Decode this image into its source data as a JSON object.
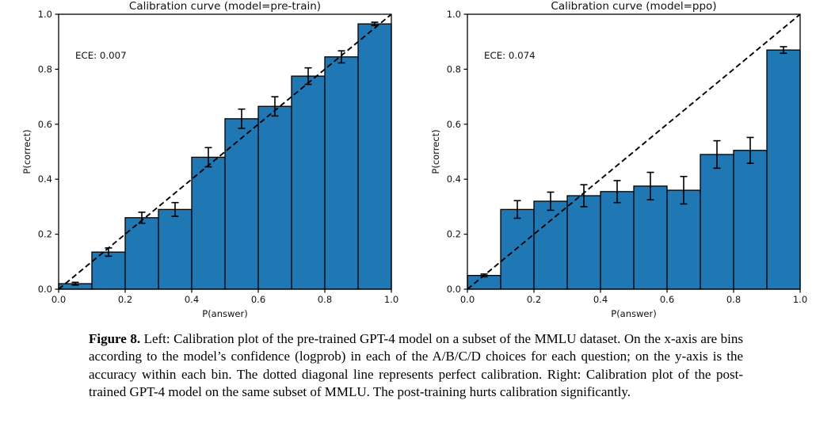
{
  "figure": {
    "caption_label": "Figure 8.",
    "caption_text": "Left: Calibration plot of the pre-trained GPT-4 model on a subset of the MMLU dataset. On the x-axis are bins according to the model’s confidence (logprob) in each of the A/B/C/D choices for each question; on the y-axis is the accuracy within each bin. The dotted diagonal line represents perfect calibration. Right: Calibration plot of the post-trained GPT-4 model on the same subset of MMLU. The post-training hurts calibration significantly."
  },
  "chart_data": [
    {
      "type": "bar",
      "title": "Calibration curve (model=pre-train)",
      "annotation": "ECE: 0.007",
      "xlabel": "P(answer)",
      "ylabel": "P(correct)",
      "xlim": [
        0.0,
        1.0
      ],
      "ylim": [
        0.0,
        1.0
      ],
      "grid": false,
      "legend": null,
      "diagonal_line": "dashed, perfect calibration y=x",
      "xtick_labels": [
        "0.0",
        "0.2",
        "0.4",
        "0.6",
        "0.8",
        "1.0"
      ],
      "ytick_labels": [
        "0.0",
        "0.2",
        "0.4",
        "0.6",
        "0.8",
        "1.0"
      ],
      "bin_edges": [
        0.0,
        0.1,
        0.2,
        0.3,
        0.4,
        0.5,
        0.6,
        0.7,
        0.8,
        0.9,
        1.0
      ],
      "values": [
        0.02,
        0.135,
        0.26,
        0.29,
        0.48,
        0.62,
        0.665,
        0.775,
        0.845,
        0.965
      ],
      "errors": [
        0.005,
        0.015,
        0.02,
        0.025,
        0.035,
        0.035,
        0.035,
        0.03,
        0.022,
        0.006
      ],
      "bar_color": "#1f77b4",
      "bar_edge_color": "#000000",
      "line_color": "#000000"
    },
    {
      "type": "bar",
      "title": "Calibration curve (model=ppo)",
      "annotation": "ECE: 0.074",
      "xlabel": "P(answer)",
      "ylabel": "P(correct)",
      "xlim": [
        0.0,
        1.0
      ],
      "ylim": [
        0.0,
        1.0
      ],
      "grid": false,
      "legend": null,
      "diagonal_line": "dashed, perfect calibration y=x",
      "xtick_labels": [
        "0.0",
        "0.2",
        "0.4",
        "0.6",
        "0.8",
        "1.0"
      ],
      "ytick_labels": [
        "0.0",
        "0.2",
        "0.4",
        "0.6",
        "0.8",
        "1.0"
      ],
      "bin_edges": [
        0.0,
        0.1,
        0.2,
        0.3,
        0.4,
        0.5,
        0.6,
        0.7,
        0.8,
        0.9,
        1.0
      ],
      "values": [
        0.05,
        0.29,
        0.32,
        0.34,
        0.355,
        0.375,
        0.36,
        0.49,
        0.505,
        0.87
      ],
      "errors": [
        0.005,
        0.032,
        0.033,
        0.04,
        0.04,
        0.05,
        0.05,
        0.05,
        0.047,
        0.012
      ],
      "bar_color": "#1f77b4",
      "bar_edge_color": "#000000",
      "line_color": "#000000"
    }
  ]
}
